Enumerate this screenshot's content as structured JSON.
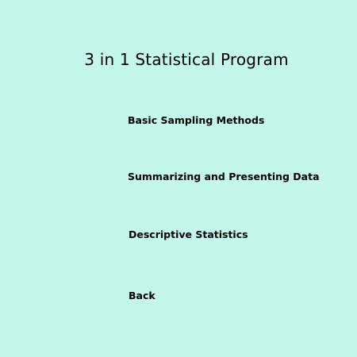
{
  "window": {
    "background_color": "#c3f7ea"
  },
  "title": "3 in 1 Statistical Program",
  "menu": {
    "items": [
      {
        "label": "Basic Sampling Methods"
      },
      {
        "label": "Summarizing and Presenting Data"
      },
      {
        "label": "Descriptive Statistics"
      },
      {
        "label": "Back"
      }
    ]
  }
}
